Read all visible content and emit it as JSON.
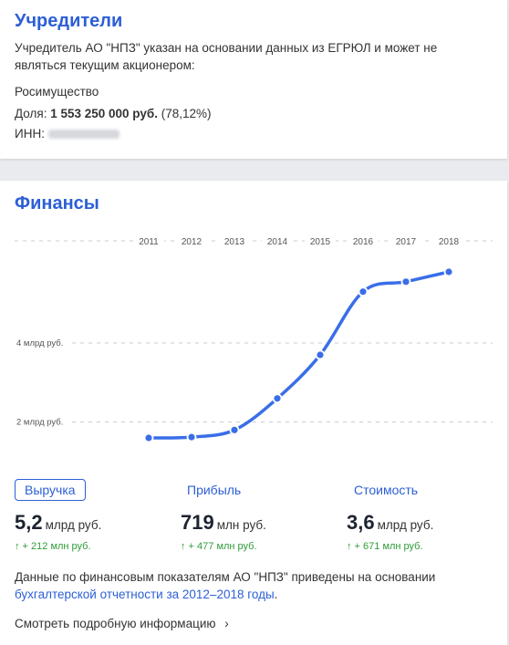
{
  "founders": {
    "title": "Учредители",
    "note": "Учредитель АО \"НПЗ\" указан на основании данных из ЕГРЮЛ и может не являться текущим акционером:",
    "name": "Росимущество",
    "share_label": "Доля:",
    "share_amount": "1 553 250 000 руб.",
    "share_percent": "(78,12%)",
    "inn_label": "ИНН:"
  },
  "finance": {
    "title": "Финансы",
    "metrics": [
      {
        "label": "Выручка",
        "value": "5,2",
        "unit": "млрд руб.",
        "delta": "↑ + 212 млн руб."
      },
      {
        "label": "Прибыль",
        "value": "719",
        "unit": "млн руб.",
        "delta": "↑ + 477 млн руб."
      },
      {
        "label": "Стоимость",
        "value": "3,6",
        "unit": "млрд руб.",
        "delta": "↑ + 671 млн руб."
      }
    ],
    "note_text": "Данные по финансовым показателям АО \"НПЗ\" приведены на основании",
    "note_link": "бухгалтерской отчетности за 2012–2018 годы",
    "note_end": ".",
    "more_link": "Смотреть подробную информацию",
    "more_chevron": "›"
  },
  "chart_data": {
    "type": "line",
    "x": [
      "2011",
      "2012",
      "2013",
      "2014",
      "2015",
      "2016",
      "2017",
      "2018"
    ],
    "series": [
      {
        "values": [
          1.6,
          1.62,
          1.8,
          2.6,
          3.7,
          5.3,
          5.55,
          5.8
        ]
      }
    ],
    "ytick_labels": [
      "4 млрд руб.",
      "2 млрд руб."
    ],
    "ytick_values": [
      4,
      2
    ],
    "ylim": [
      1,
      6.4
    ],
    "grid": true,
    "line_color": "#3a6ee8"
  }
}
